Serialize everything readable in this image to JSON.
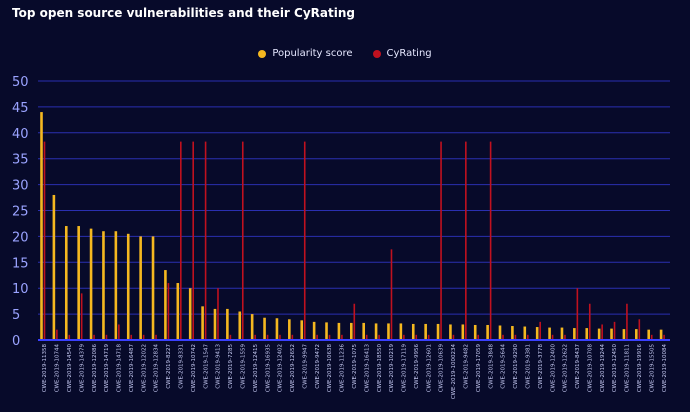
{
  "chart_data": {
    "type": "bar",
    "title": "Top open source vulnerabilities and their CyRating",
    "ylim": [
      0,
      50
    ],
    "yticks": [
      0,
      5,
      10,
      15,
      20,
      25,
      30,
      35,
      40,
      45,
      50
    ],
    "legend_position": "top-center",
    "grid": true,
    "colors": {
      "background": "#070a2a",
      "grid": "#2a2fb0",
      "popularity": "#f5b820",
      "cyrating": "#c0111f",
      "tick": "#9aa3ff"
    },
    "categories": [
      "CWE-2019-11358",
      "CWE-2019-10744",
      "CWE-2019-14540",
      "CWE-2019-14379",
      "CWE-2019-12086",
      "CWE-2019-14719",
      "CWE-2019-14718",
      "CWE-2019-16487",
      "CWE-2019-12022",
      "CWE-2019-12834",
      "CWE-2019-8227",
      "CWE-2019-8331",
      "CWE-2019-10742",
      "CWE-2019-1547",
      "CWE-2019-9413",
      "CWE-2019-7285",
      "CWE-2019-1559",
      "CWE-2019-12415",
      "CWE-2019-16935",
      "CWE-2019-12402",
      "CWE-2019-12652",
      "CWE-2019-9947",
      "CWE-2019-9472",
      "CWE-2019-10638",
      "CWE-2019-11236",
      "CWE-2019-1075",
      "CWE-2019-16413",
      "CWE-2019-18550",
      "CWE-2019-10219",
      "CWE-2019-17119",
      "CWE-2019-9956",
      "CWE-2019-12601",
      "CWE-2019-10639",
      "CWE-2019-1000234",
      "CWE-2019-9482",
      "CWE-2019-17059",
      "CWE-2019-3848",
      "CWE-2019-5644",
      "CWE-2019-9290",
      "CWE-2019-9381",
      "CWE-2019-3778",
      "CWE-2019-12400",
      "CWE-2019-12622",
      "CWE-2019-8437",
      "CWE-2019-10708",
      "CWE-2019-19244",
      "CWE-2019-12450",
      "CWE-2019-11811",
      "CWE-2019-19916",
      "CWE-2019-15505",
      "CWE-2019-10084"
    ],
    "series": [
      {
        "name": "Popularity score",
        "values": [
          44,
          28,
          22,
          22,
          21.5,
          21,
          21,
          20.5,
          20,
          20,
          13.5,
          11,
          10,
          6.5,
          6,
          6,
          5.5,
          5,
          4.3,
          4.2,
          4,
          3.8,
          3.5,
          3.4,
          3.3,
          3.3,
          3.3,
          3.2,
          3.2,
          3.2,
          3.1,
          3.1,
          3.1,
          3.0,
          3.0,
          2.9,
          2.9,
          2.8,
          2.7,
          2.6,
          2.5,
          2.4,
          2.4,
          2.3,
          2.3,
          2.2,
          2.2,
          2.1,
          2.1,
          2.0,
          2.0
        ]
      },
      {
        "name": "CyRating",
        "values": [
          38.3,
          2,
          1,
          9,
          1,
          1,
          3,
          1,
          1,
          1,
          11,
          38.3,
          38.3,
          38.3,
          10,
          1,
          38.3,
          1,
          1,
          1,
          1,
          38.3,
          1,
          1,
          1,
          7,
          1,
          1,
          17.5,
          1,
          1,
          1,
          38.3,
          1,
          38.3,
          1,
          38.3,
          1,
          1,
          1,
          3.5,
          1,
          1,
          10,
          7,
          3,
          3.5,
          7,
          4,
          1,
          1
        ]
      }
    ]
  }
}
